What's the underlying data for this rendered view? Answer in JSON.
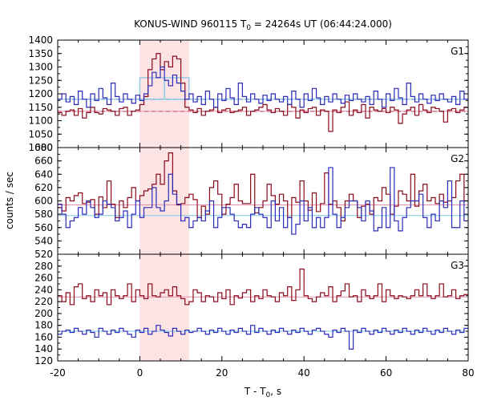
{
  "chart_data": {
    "type": "line",
    "title_main": "KONUS-WIND 960115 T",
    "title_sub": "0",
    "title_rest": " = 24264s UT (06:44:24.000)",
    "xlabel_main": "T - T",
    "xlabel_sub": "0",
    "xlabel_rest": ", s",
    "ylabel": "counts / sec",
    "xlim": [
      -20,
      80
    ],
    "x_ticks": [
      -20,
      0,
      20,
      40,
      60,
      80
    ],
    "highlight_interval": [
      0,
      12
    ],
    "colors": {
      "red": "#8b0a1a",
      "blue": "#2a2ab8",
      "pink": "#e58fb0",
      "cyan": "#7fc6e6",
      "highlight": "#fde4e4"
    },
    "panels": [
      {
        "name": "G1",
        "ylim": [
          1000,
          1400
        ],
        "y_ticks": [
          1000,
          1050,
          1100,
          1150,
          1200,
          1250,
          1300,
          1350,
          1400
        ],
        "bin_width": 1,
        "x_start": -20,
        "series": [
          {
            "color": "red",
            "values": [
              1130,
              1120,
              1135,
              1140,
              1120,
              1145,
              1110,
              1130,
              1150,
              1130,
              1125,
              1145,
              1140,
              1135,
              1120,
              1145,
              1150,
              1120,
              1135,
              1140,
              1160,
              1190,
              1290,
              1330,
              1350,
              1290,
              1320,
              1300,
              1340,
              1330,
              1240,
              1150,
              1140,
              1130,
              1145,
              1120,
              1135,
              1140,
              1150,
              1130,
              1140,
              1145,
              1130,
              1135,
              1140,
              1150,
              1120,
              1135,
              1140,
              1150,
              1160,
              1140,
              1130,
              1145,
              1135,
              1120,
              1160,
              1150,
              1110,
              1140,
              1130,
              1145,
              1150,
              1120,
              1140,
              1135,
              1060,
              1140,
              1130,
              1150,
              1170,
              1120,
              1140,
              1130,
              1160,
              1110,
              1150,
              1140,
              1135,
              1145,
              1130,
              1150,
              1140,
              1090,
              1125,
              1140,
              1150,
              1120,
              1160,
              1140,
              1130,
              1150,
              1145,
              1135,
              1095,
              1140,
              1145,
              1130,
              1140,
              1150
            ]
          },
          {
            "color": "blue",
            "values": [
              1180,
              1200,
              1170,
              1190,
              1160,
              1210,
              1180,
              1150,
              1200,
              1175,
              1220,
              1185,
              1160,
              1240,
              1190,
              1170,
              1200,
              1180,
              1165,
              1195,
              1175,
              1200,
              1230,
              1280,
              1260,
              1300,
              1250,
              1230,
              1270,
              1240,
              1210,
              1180,
              1200,
              1170,
              1190,
              1160,
              1210,
              1180,
              1150,
              1200,
              1175,
              1220,
              1185,
              1160,
              1240,
              1190,
              1170,
              1200,
              1180,
              1165,
              1195,
              1175,
              1200,
              1180,
              1170,
              1190,
              1160,
              1210,
              1180,
              1150,
              1200,
              1175,
              1220,
              1185,
              1160,
              1190,
              1170,
              1200,
              1180,
              1165,
              1195,
              1175,
              1200,
              1180,
              1170,
              1190,
              1160,
              1210,
              1180,
              1150,
              1200,
              1175,
              1220,
              1185,
              1160,
              1240,
              1190,
              1170,
              1200,
              1180,
              1165,
              1195,
              1175,
              1200,
              1180,
              1170,
              1190,
              1160,
              1210,
              1180
            ]
          }
        ],
        "boxes": [
          {
            "color": "cyan",
            "x": [
              6,
              12
            ],
            "y": [
              1180,
              1260
            ]
          },
          {
            "color": "cyan",
            "x": [
              0,
              6
            ],
            "y": [
              1180,
              1260
            ]
          }
        ],
        "levels": [
          {
            "color": "red",
            "dashed": true,
            "y": 1135
          },
          {
            "color": "blue",
            "dashed": true,
            "y": 1180
          },
          {
            "color": "pink",
            "dashed": false,
            "y": 1135
          },
          {
            "color": "cyan",
            "dashed": false,
            "y": 1180
          }
        ]
      },
      {
        "name": "G2",
        "ylim": [
          520,
          680
        ],
        "y_ticks": [
          520,
          540,
          560,
          580,
          600,
          620,
          640,
          660,
          680
        ],
        "bin_width": 1,
        "x_start": -20,
        "series": [
          {
            "color": "red",
            "values": [
              590,
              585,
              605,
              600,
              608,
              612,
              596,
              598,
              602,
              580,
              606,
              590,
              630,
              595,
              575,
              600,
              590,
              605,
              620,
              600,
              608,
              615,
              618,
              625,
              640,
              625,
              660,
              672,
              615,
              594,
              596,
              605,
              610,
              602,
              575,
              592,
              580,
              620,
              630,
              610,
              580,
              595,
              605,
              625,
              600,
              596,
              596,
              640,
              582,
              590,
              600,
              625,
              608,
              595,
              610,
              600,
              575,
              605,
              598,
              630,
              600,
              586,
              612,
              584,
              596,
              642,
              595,
              600,
              590,
              570,
              600,
              610,
              600,
              575,
              592,
              595,
              580,
              605,
              600,
              620,
              610,
              580,
              592,
              615,
              610,
              600,
              640,
              592,
              615,
              625,
              600,
              605,
              596,
              610,
              598,
              600,
              605,
              630,
              640,
              600
            ]
          },
          {
            "color": "blue",
            "values": [
              595,
              580,
              560,
              570,
              575,
              590,
              580,
              600,
              590,
              575,
              580,
              600,
              595,
              590,
              570,
              575,
              585,
              560,
              580,
              600,
              575,
              590,
              590,
              620,
              590,
              585,
              600,
              640,
              610,
              595,
              570,
              575,
              560,
              570,
              575,
              570,
              585,
              600,
              560,
              575,
              590,
              590,
              580,
              570,
              560,
              565,
              560,
              580,
              590,
              580,
              575,
              560,
              600,
              570,
              590,
              560,
              575,
              550,
              565,
              600,
              570,
              590,
              560,
              575,
              560,
              575,
              650,
              580,
              560,
              575,
              590,
              600,
              600,
              590,
              570,
              600,
              585,
              555,
              560,
              590,
              560,
              650,
              570,
              555,
              575,
              590,
              600,
              600,
              610,
              575,
              560,
              580,
              570,
              600,
              590,
              630,
              560,
              560,
              600,
              570
            ]
          }
        ],
        "boxes": [],
        "levels": [
          {
            "color": "pink",
            "dashed": false,
            "y": 594
          },
          {
            "color": "cyan",
            "dashed": false,
            "y": 578
          }
        ]
      },
      {
        "name": "G3",
        "ylim": [
          120,
          300
        ],
        "y_ticks": [
          120,
          140,
          160,
          180,
          200,
          220,
          240,
          260,
          280
        ],
        "bin_width": 1,
        "x_start": -20,
        "series": [
          {
            "color": "red",
            "values": [
              230,
              220,
              235,
              215,
              245,
              250,
              225,
              230,
              220,
              240,
              230,
              235,
              215,
              240,
              230,
              225,
              230,
              250,
              220,
              240,
              230,
              225,
              250,
              230,
              228,
              235,
              240,
              230,
              245,
              230,
              225,
              215,
              220,
              240,
              235,
              220,
              230,
              228,
              220,
              235,
              225,
              240,
              215,
              230,
              226,
              235,
              240,
              220,
              230,
              225,
              240,
              230,
              228,
              220,
              235,
              230,
              245,
              222,
              240,
              275,
              230,
              225,
              220,
              228,
              235,
              230,
              245,
              220,
              230,
              238,
              250,
              228,
              230,
              220,
              240,
              230,
              225,
              230,
              250,
              220,
              240,
              230,
              225,
              230,
              228,
              225,
              230,
              240,
              230,
              250,
              230,
              225,
              230,
              250,
              228,
              230,
              240,
              225,
              230,
              232
            ]
          },
          {
            "color": "blue",
            "values": [
              165,
              170,
              172,
              168,
              175,
              170,
              165,
              172,
              168,
              160,
              175,
              170,
              165,
              172,
              168,
              175,
              170,
              165,
              160,
              172,
              168,
              175,
              165,
              170,
              180,
              172,
              168,
              162,
              175,
              170,
              165,
              172,
              168,
              170,
              175,
              170,
              165,
              172,
              168,
              175,
              170,
              165,
              172,
              168,
              175,
              170,
              165,
              180,
              168,
              175,
              170,
              165,
              172,
              168,
              175,
              170,
              165,
              172,
              168,
              175,
              170,
              165,
              172,
              175,
              170,
              165,
              160,
              172,
              168,
              175,
              170,
              140,
              172,
              168,
              175,
              170,
              165,
              172,
              168,
              175,
              170,
              165,
              172,
              168,
              175,
              170,
              165,
              172,
              168,
              175,
              170,
              165,
              172,
              168,
              175,
              170,
              165,
              172,
              168,
              175
            ]
          }
        ],
        "boxes": [],
        "levels": [
          {
            "color": "pink",
            "dashed": false,
            "y": 228
          },
          {
            "color": "cyan",
            "dashed": false,
            "y": 170
          }
        ]
      }
    ]
  }
}
